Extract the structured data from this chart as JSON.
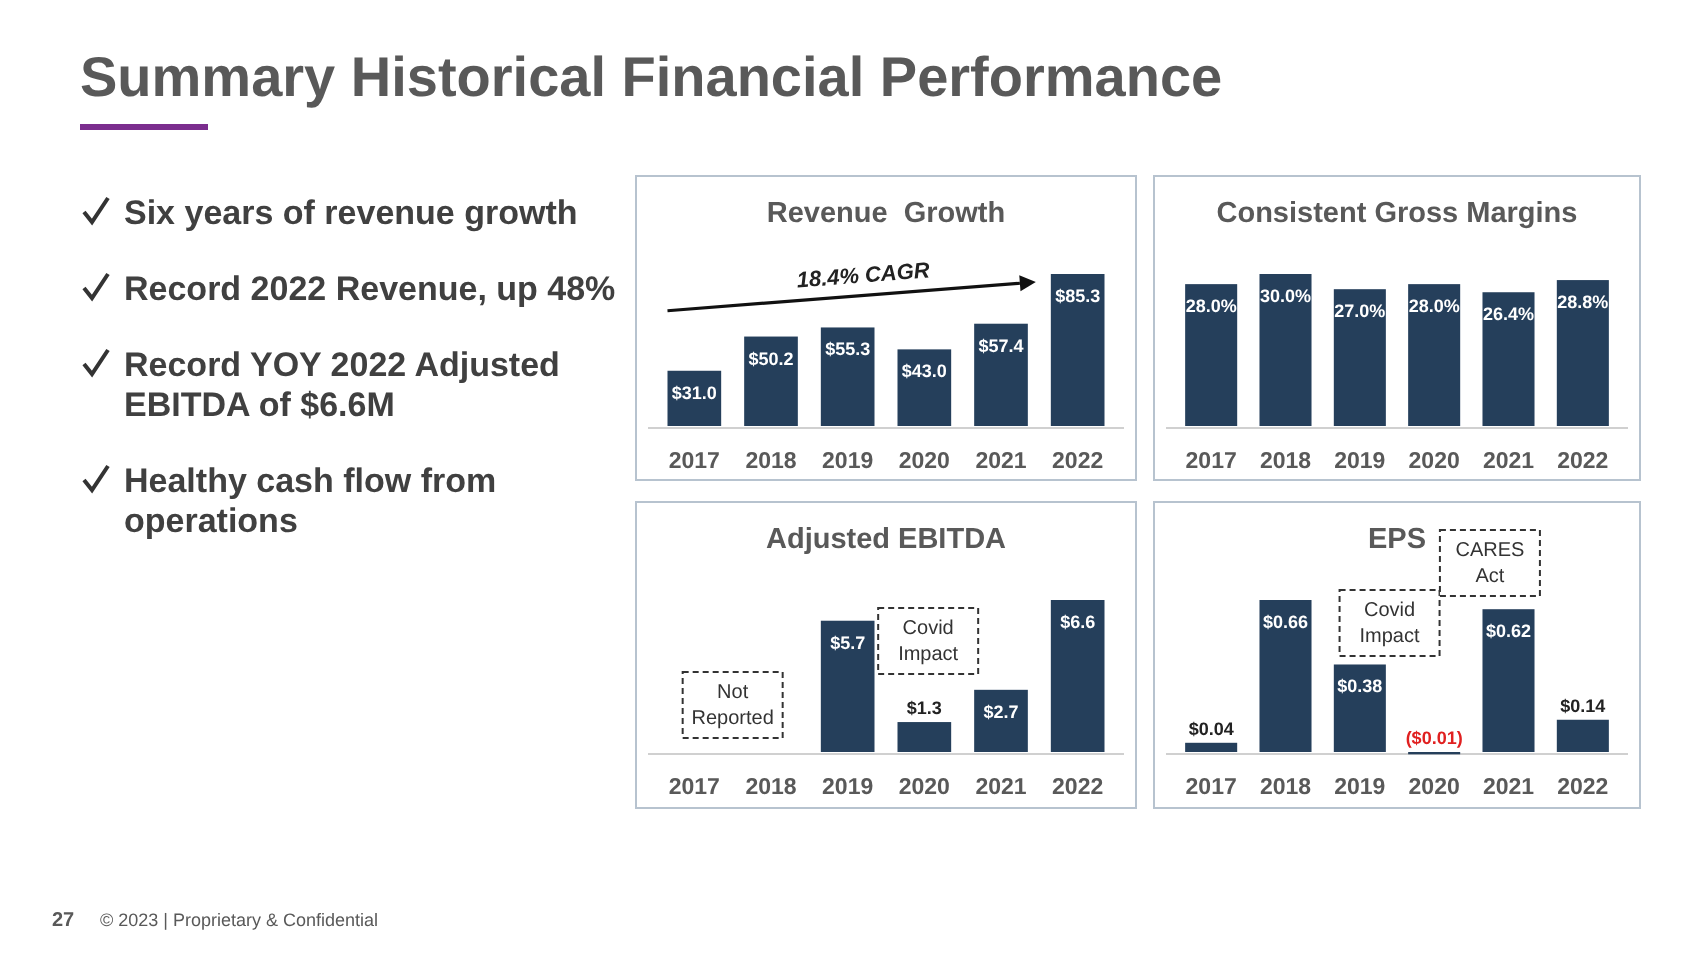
{
  "chart_data": [
    {
      "type": "other",
      "title": "Summary Historical Financial Performance",
      "annotations": [
        "Six years of revenue growth",
        "Record 2022 Revenue, up 48%",
        "Record YOY 2022 Adjusted EBITDA of $6.6M",
        "Healthy cash flow from operations"
      ]
    },
    {
      "type": "bar",
      "title": "Revenue  Growth",
      "categories": [
        "2017",
        "2018",
        "2019",
        "2020",
        "2021",
        "2022"
      ],
      "values": [
        31.0,
        50.2,
        55.3,
        43.0,
        57.4,
        85.3
      ],
      "color": "#253f5b",
      "value_labels": [
        "$31.0",
        "$50.2",
        "$55.3",
        "$43.0",
        "$57.4",
        "$85.3"
      ],
      "annotations": [
        "18.4% CAGR"
      ]
    },
    {
      "type": "bar",
      "title": "Consistent Gross Margins",
      "categories": [
        "2017",
        "2018",
        "2019",
        "2020",
        "2021",
        "2022"
      ],
      "values": [
        28.0,
        30.0,
        27.0,
        28.0,
        26.4,
        28.8
      ],
      "color": "#253f5b",
      "value_labels": [
        "28.0%",
        "30.0%",
        "27.0%",
        "28.0%",
        "26.4%",
        "28.8%"
      ]
    },
    {
      "type": "bar",
      "title": "Adjusted EBITDA",
      "categories": [
        "2017",
        "2018",
        "2019",
        "2020",
        "2021",
        "2022"
      ],
      "values": [
        null,
        null,
        5.7,
        1.3,
        2.7,
        6.6
      ],
      "color": "#253f5b",
      "value_labels": [
        null,
        null,
        "$5.7",
        "$1.3",
        "$2.7",
        "$6.6"
      ],
      "annotations": [
        "Not Reported",
        "Covid Impact"
      ]
    },
    {
      "type": "bar",
      "title": "EPS",
      "categories": [
        "2017",
        "2018",
        "2019",
        "2020",
        "2021",
        "2022"
      ],
      "values": [
        0.04,
        0.66,
        0.38,
        -0.01,
        0.62,
        0.14
      ],
      "color": "#253f5b",
      "value_labels": [
        "$0.04",
        "$0.66",
        "$0.38",
        "($0.01)",
        "$0.62",
        "$0.14"
      ],
      "annotations": [
        "Covid Impact",
        "CARES Act"
      ]
    },
    {
      "type": "other",
      "annotations": [
        "27",
        "© 2023 | Proprietary & Confidential"
      ]
    }
  ]
}
